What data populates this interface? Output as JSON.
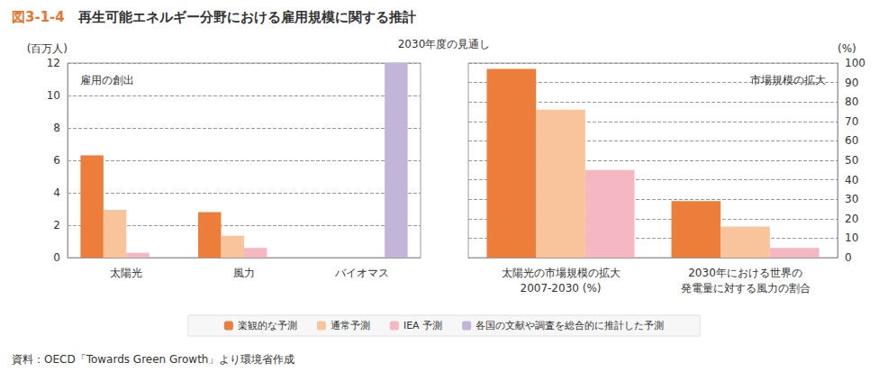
{
  "title": "図3-1-4　再生可能エネルギー分野における雇用規模に関する推計",
  "subtitle": "2030年度の見通し",
  "source": "資料：OECD「Towards Green Growth」より環境省作成",
  "legend": "bottom",
  "chart_data": [
    {
      "type": "bar",
      "title": "雇用の創出",
      "y_label": "(百万人)",
      "categories": [
        "太陽光",
        "風力",
        "バイオマス"
      ],
      "series": [
        {
          "name": "楽観的な予測",
          "color": "#ed7d3a",
          "values": [
            6.3,
            2.8,
            null
          ]
        },
        {
          "name": "通常予測",
          "color": "#f9c49b",
          "values": [
            2.95,
            1.35,
            null
          ]
        },
        {
          "name": "IEA 予測",
          "color": "#f5b8c3",
          "values": [
            0.3,
            0.6,
            null
          ]
        },
        {
          "name": "各国の文献や調査を総合的に推計した予測",
          "color": "#c3b4da",
          "values": [
            null,
            null,
            12
          ]
        }
      ],
      "ylim": [
        0,
        12
      ],
      "yticks": [
        0,
        2,
        4,
        6,
        8,
        10,
        12
      ],
      "grid": true
    },
    {
      "type": "bar",
      "title": "市場規模の拡大",
      "y_label": "(%)",
      "categories": [
        "太陽光の市場規模の拡大\n2007-2030 (%)",
        "2030年における世界の\n発電量に対する風力の割合"
      ],
      "series": [
        {
          "name": "楽観的な予測",
          "color": "#ed7d3a",
          "values": [
            97,
            29
          ]
        },
        {
          "name": "通常予測",
          "color": "#f9c49b",
          "values": [
            76,
            16
          ]
        },
        {
          "name": "IEA 予測",
          "color": "#f5b8c3",
          "values": [
            45,
            5
          ]
        }
      ],
      "ylim": [
        0,
        100
      ],
      "yticks": [
        0,
        10,
        20,
        30,
        40,
        50,
        60,
        70,
        80,
        90,
        100
      ],
      "grid": true
    }
  ]
}
